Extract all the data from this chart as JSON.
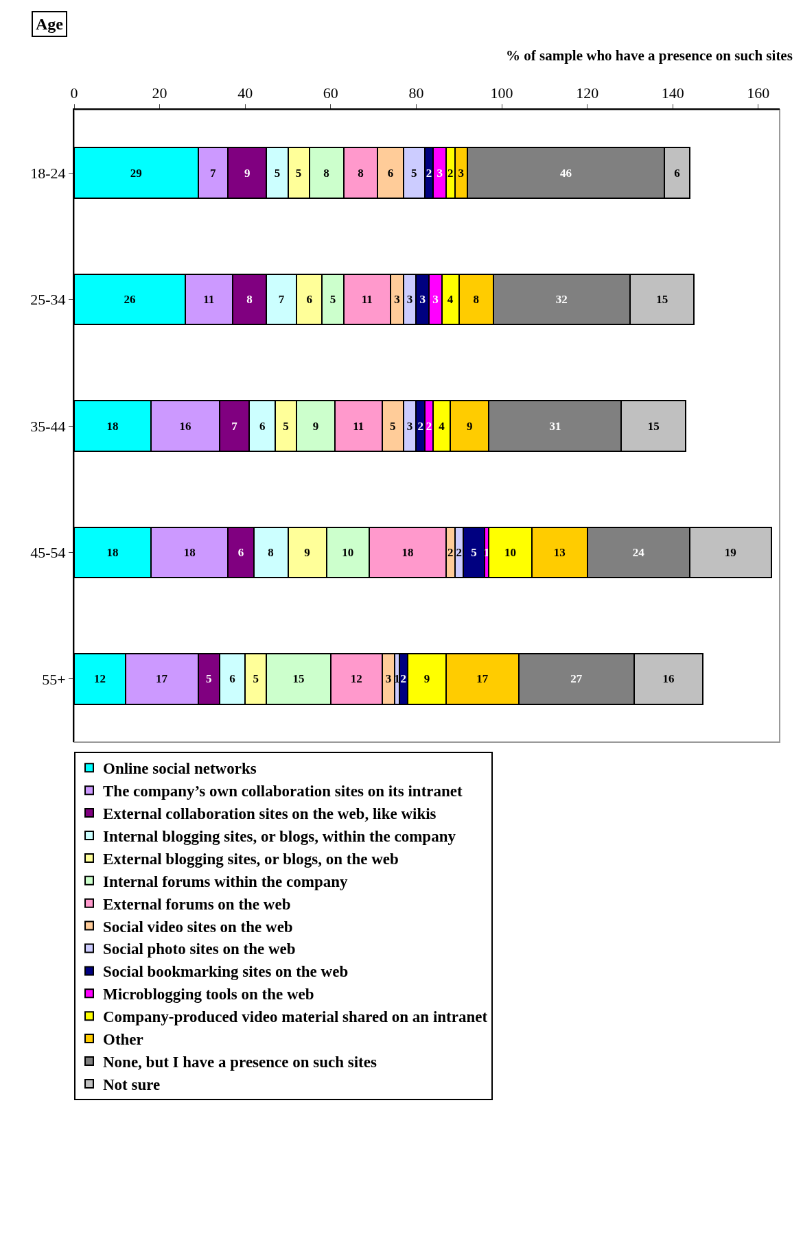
{
  "chart_data": {
    "type": "bar",
    "orientation": "horizontal",
    "stacked": true,
    "data_labels": true,
    "grid": false,
    "legend": "bottom",
    "ylabel": "Age",
    "xlabel": "% of sample who have a presence on such sites",
    "categories": [
      "18-24",
      "25-34",
      "35-44",
      "45-54",
      "55+"
    ],
    "xlim": [
      0,
      165
    ],
    "xticks": [
      0,
      20,
      40,
      60,
      80,
      100,
      120,
      140,
      160
    ],
    "series": [
      {
        "name": "Online social networks",
        "color": "#00ffff",
        "values": [
          29,
          26,
          18,
          18,
          12
        ]
      },
      {
        "name": "The company’s own collaboration sites on its intranet",
        "color": "#cc99ff",
        "values": [
          7,
          11,
          16,
          18,
          17
        ]
      },
      {
        "name": "External collaboration sites on the web, like wikis",
        "color": "#800080",
        "values": [
          9,
          8,
          7,
          6,
          5
        ]
      },
      {
        "name": "Internal blogging sites, or blogs, within the company",
        "color": "#ccffff",
        "values": [
          5,
          7,
          6,
          8,
          6
        ]
      },
      {
        "name": "External blogging sites, or blogs, on the web",
        "color": "#ffff99",
        "values": [
          5,
          6,
          5,
          9,
          5
        ]
      },
      {
        "name": "Internal forums within the company",
        "color": "#ccffcc",
        "values": [
          8,
          5,
          9,
          10,
          15
        ]
      },
      {
        "name": "External forums on the web",
        "color": "#ff99cc",
        "values": [
          8,
          11,
          11,
          18,
          12
        ]
      },
      {
        "name": "Social video sites on the web",
        "color": "#ffcc99",
        "values": [
          6,
          3,
          5,
          2,
          3
        ]
      },
      {
        "name": "Social photo sites on the web",
        "color": "#ccccff",
        "values": [
          5,
          3,
          3,
          2,
          1
        ]
      },
      {
        "name": "Social bookmarking sites on the web",
        "color": "#000080",
        "values": [
          2,
          3,
          2,
          5,
          2
        ]
      },
      {
        "name": "Microblogging tools on the web",
        "color": "#ff00ff",
        "values": [
          3,
          3,
          2,
          1,
          null
        ]
      },
      {
        "name": "Company-produced video material shared on an intranet",
        "color": "#ffff00",
        "values": [
          2,
          4,
          4,
          10,
          9
        ]
      },
      {
        "name": "Other",
        "color": "#ffcc00",
        "values": [
          3,
          8,
          9,
          13,
          17
        ]
      },
      {
        "name": "None, but I have a presence on such sites",
        "color": "#808080",
        "values": [
          46,
          32,
          31,
          24,
          27
        ]
      },
      {
        "name": "Not sure",
        "color": "#c0c0c0",
        "values": [
          6,
          15,
          15,
          19,
          16
        ]
      }
    ]
  }
}
